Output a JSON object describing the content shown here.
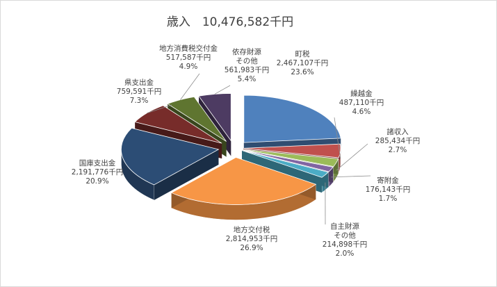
{
  "chart_data": {
    "type": "pie",
    "style": "3d-exploded",
    "title": "歳入　10,476,582千円",
    "unit": "千円",
    "slices": [
      {
        "name": "町税",
        "value_text": "2,467,107千円",
        "value": 2467107,
        "percent": "23.6%",
        "color": "#4f81bd"
      },
      {
        "name": "繰越金",
        "value_text": "487,110千円",
        "value": 487110,
        "percent": "4.6%",
        "color": "#c0504d"
      },
      {
        "name": "諸収入",
        "value_text": "285,434千円",
        "value": 285434,
        "percent": "2.7%",
        "color": "#9bbb59"
      },
      {
        "name": "寄附金",
        "value_text": "176,143千円",
        "value": 176143,
        "percent": "1.7%",
        "color": "#8064a2"
      },
      {
        "name": "自主財源\nその他",
        "value_text": "214,898千円",
        "value": 214898,
        "percent": "2.0%",
        "color": "#4bacc6"
      },
      {
        "name": "地方交付税",
        "value_text": "2,814,953千円",
        "value": 2814953,
        "percent": "26.9%",
        "color": "#f79646"
      },
      {
        "name": "国庫支出金",
        "value_text": "2,191,776千円",
        "value": 2191776,
        "percent": "20.9%",
        "color": "#2c4d75"
      },
      {
        "name": "県支出金",
        "value_text": "759,591千円",
        "value": 759591,
        "percent": "7.3%",
        "color": "#772c2a"
      },
      {
        "name": "地方消費税交付金",
        "value_text": "517,587千円",
        "value": 517587,
        "percent": "4.9%",
        "color": "#5f7530"
      },
      {
        "name": "依存財源\nその他",
        "value_text": "561,983千円",
        "value": 561983,
        "percent": "5.4%",
        "color": "#4d3b62"
      }
    ]
  }
}
